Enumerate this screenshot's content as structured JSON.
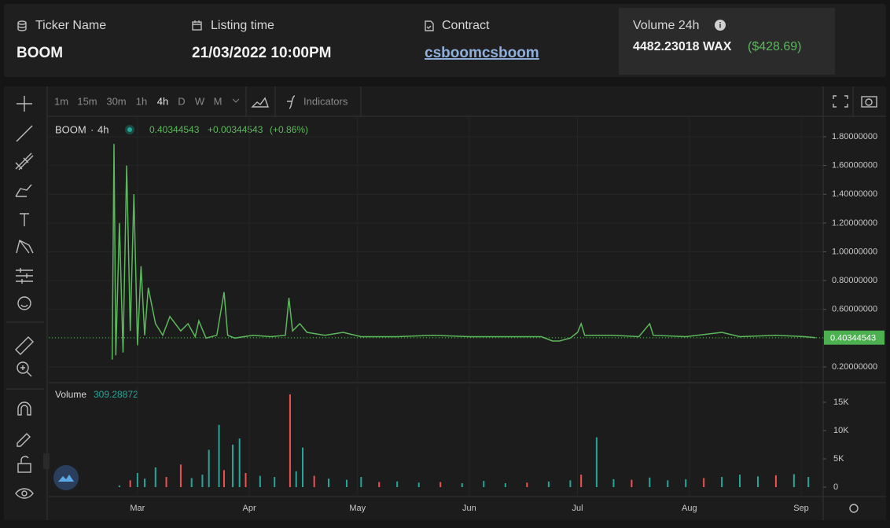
{
  "header": {
    "ticker_label": "Ticker Name",
    "ticker": "BOOM",
    "listing_label": "Listing time",
    "listing": "21/03/2022 10:00PM",
    "contract_label": "Contract",
    "contract": "csboomcsboom",
    "volume_label": "Volume 24h",
    "volume": "4482.23018 WAX",
    "volume_usd": "($428.69)"
  },
  "toolbar": {
    "intervals": [
      "1m",
      "15m",
      "30m",
      "1h",
      "4h",
      "D",
      "W",
      "M"
    ],
    "indicators": "Indicators"
  },
  "chart_data": [
    {
      "type": "line",
      "title": "BOOM",
      "interval": "4h",
      "change": "+0.00344543",
      "change_pct": "(+0.86%)",
      "last_value": 0.40344543,
      "color": "#5cb85c",
      "x": [
        21,
        21.5,
        22,
        23,
        24,
        25,
        26,
        27,
        28,
        29,
        30,
        31,
        33,
        35,
        37,
        40,
        42,
        44,
        45,
        47,
        50,
        52,
        53,
        55,
        60,
        65,
        69,
        70,
        71,
        73,
        75,
        80,
        85,
        90,
        100,
        110,
        120,
        130,
        140,
        143,
        145,
        148,
        150,
        151,
        152,
        160,
        167,
        170,
        171,
        180,
        190,
        195,
        205,
        213,
        216
      ],
      "values": [
        0.25,
        1.75,
        0.28,
        1.2,
        0.3,
        1.6,
        0.45,
        1.4,
        0.35,
        0.9,
        0.42,
        0.75,
        0.5,
        0.42,
        0.55,
        0.45,
        0.5,
        0.41,
        0.52,
        0.4,
        0.42,
        0.72,
        0.42,
        0.4,
        0.42,
        0.41,
        0.42,
        0.68,
        0.45,
        0.5,
        0.44,
        0.42,
        0.44,
        0.41,
        0.41,
        0.42,
        0.41,
        0.41,
        0.41,
        0.38,
        0.38,
        0.4,
        0.44,
        0.5,
        0.42,
        0.42,
        0.41,
        0.5,
        0.42,
        0.41,
        0.44,
        0.41,
        0.42,
        0.41,
        0.40344543
      ],
      "xlim": [
        3.4,
        218.1
      ],
      "xticks": [
        {
          "value": 28,
          "label": "Mar"
        },
        {
          "value": 59,
          "label": "Apr"
        },
        {
          "value": 89,
          "label": "May"
        },
        {
          "value": 120,
          "label": "Jun"
        },
        {
          "value": 150,
          "label": "Jul"
        },
        {
          "value": 181,
          "label": "Aug"
        },
        {
          "value": 212,
          "label": "Sep"
        }
      ],
      "ylim": [
        0.096,
        1.931
      ],
      "yticks": [
        {
          "value": 0.2,
          "label": "0.20000000"
        },
        {
          "value": 0.4,
          "label": "0.40000000"
        },
        {
          "value": 0.6,
          "label": "0.60000000"
        },
        {
          "value": 0.8,
          "label": "0.80000000"
        },
        {
          "value": 1.0,
          "label": "1.00000000"
        },
        {
          "value": 1.2,
          "label": "1.20000000"
        },
        {
          "value": 1.4,
          "label": "1.40000000"
        },
        {
          "value": 1.6,
          "label": "1.60000000"
        },
        {
          "value": 1.8,
          "label": "1.80000000"
        }
      ],
      "grid": true
    },
    {
      "type": "bar",
      "title": "Volume",
      "legend_value": 309.28872,
      "x": [
        23,
        26,
        28,
        30,
        33,
        36,
        40,
        43,
        46,
        47.8,
        50.6,
        52,
        54.4,
        56.3,
        58,
        62,
        66,
        70.3,
        72,
        73.8,
        77,
        81,
        86,
        90,
        95,
        100,
        106,
        112,
        118,
        124,
        130,
        136,
        142,
        148,
        151,
        155.3,
        160,
        165,
        170,
        175,
        180,
        185,
        190,
        195,
        200,
        205,
        210,
        214
      ],
      "values": [
        300,
        1200,
        2500,
        1500,
        3500,
        1800,
        4000,
        1600,
        2200,
        6600,
        11000,
        3000,
        7500,
        8600,
        2500,
        2000,
        1800,
        16400,
        2800,
        7000,
        2000,
        1500,
        1300,
        1800,
        900,
        1000,
        800,
        900,
        700,
        1100,
        700,
        800,
        1000,
        1200,
        2200,
        8800,
        1400,
        1300,
        1700,
        1200,
        1400,
        1600,
        1800,
        2200,
        1900,
        2100,
        2300,
        1800
      ],
      "colors": [
        "#26a69a",
        "#ef5350",
        "#26a69a",
        "#26a69a",
        "#26a69a",
        "#ef5350",
        "#ef5350",
        "#26a69a",
        "#26a69a",
        "#26a69a",
        "#26a69a",
        "#ef5350",
        "#26a69a",
        "#26a69a",
        "#ef5350",
        "#26a69a",
        "#26a69a",
        "#ef5350",
        "#26a69a",
        "#26a69a",
        "#ef5350",
        "#26a69a",
        "#26a69a",
        "#26a69a",
        "#ef5350",
        "#26a69a",
        "#26a69a",
        "#ef5350",
        "#26a69a",
        "#26a69a",
        "#26a69a",
        "#ef5350",
        "#26a69a",
        "#26a69a",
        "#ef5350",
        "#26a69a",
        "#26a69a",
        "#ef5350",
        "#26a69a",
        "#26a69a",
        "#26a69a",
        "#ef5350",
        "#26a69a",
        "#26a69a",
        "#26a69a",
        "#ef5350",
        "#26a69a",
        "#26a69a"
      ],
      "xlim": [
        3.4,
        218.1
      ],
      "ylim": [
        -1667,
        18056
      ],
      "yticks": [
        0,
        {
          "value": 5000,
          "label": "5K"
        },
        {
          "value": 10000,
          "label": "10K"
        },
        {
          "value": 15000,
          "label": "15K"
        }
      ]
    }
  ]
}
